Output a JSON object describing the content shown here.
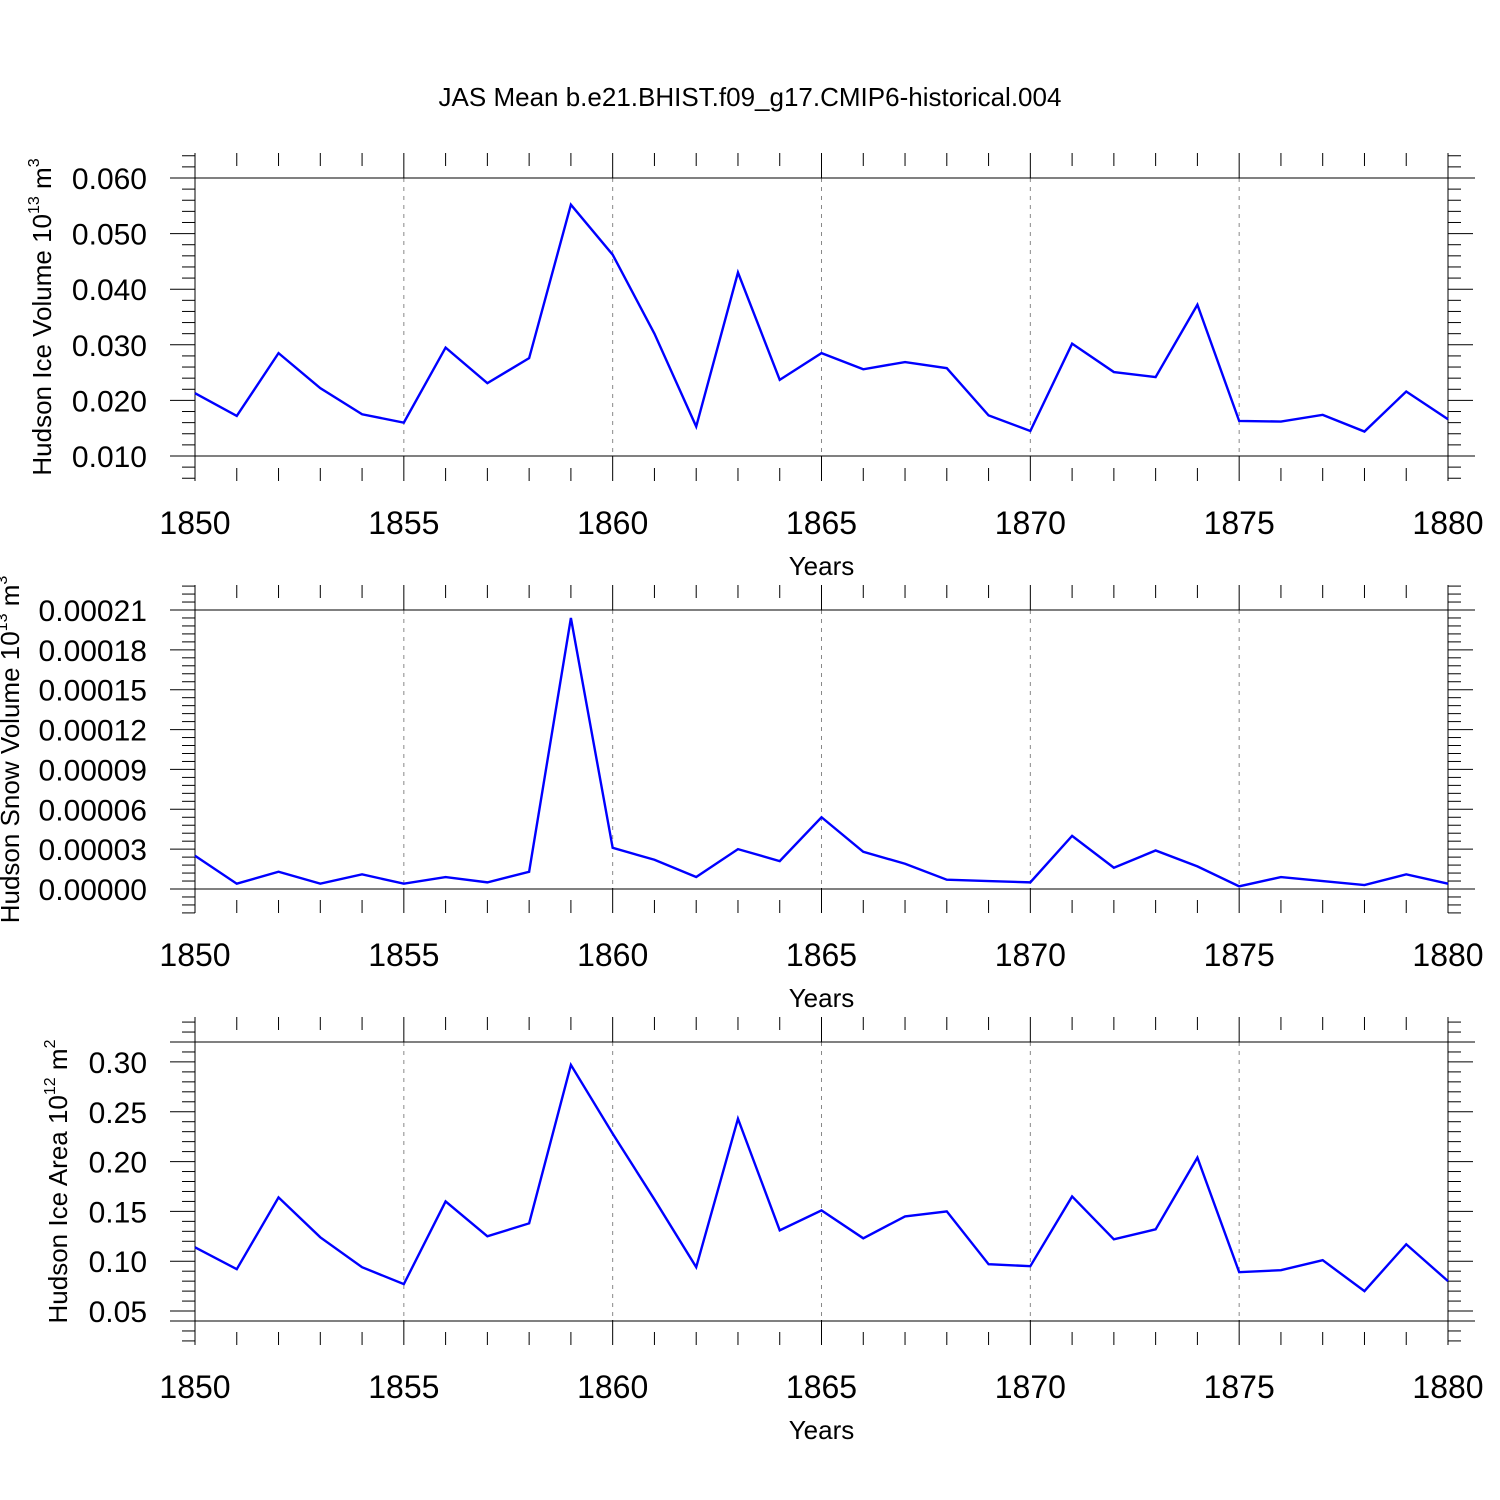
{
  "title": "JAS Mean b.e21.BHIST.f09_g17.CMIP6-historical.004",
  "colors": {
    "line": "#0000ff",
    "axis": "#000000",
    "grid": "#888888"
  },
  "chart_data": [
    {
      "type": "line",
      "ylabel": "Hudson Ice Volume 10",
      "ylabel_exp": "13",
      "ylabel_unit": " m",
      "ylabel_unit_exp": "3",
      "xlabel": "Years",
      "xlim": [
        1850,
        1880
      ],
      "ylim": [
        0.01,
        0.06
      ],
      "x_ticks": [
        "1850",
        "1855",
        "1860",
        "1865",
        "1870",
        "1875",
        "1880"
      ],
      "y_ticks": [
        "0.010",
        "0.020",
        "0.030",
        "0.040",
        "0.050",
        "0.060"
      ],
      "x": [
        1850,
        1851,
        1852,
        1853,
        1854,
        1855,
        1856,
        1857,
        1858,
        1859,
        1860,
        1861,
        1862,
        1863,
        1864,
        1865,
        1866,
        1867,
        1868,
        1869,
        1870,
        1871,
        1872,
        1873,
        1874,
        1875,
        1876,
        1877,
        1878,
        1879,
        1880
      ],
      "values": [
        0.0213,
        0.0172,
        0.0285,
        0.0222,
        0.0175,
        0.016,
        0.0295,
        0.0231,
        0.0276,
        0.0552,
        0.0462,
        0.032,
        0.0153,
        0.043,
        0.0237,
        0.0285,
        0.0256,
        0.0269,
        0.0258,
        0.0173,
        0.0145,
        0.0302,
        0.0251,
        0.0242,
        0.0372,
        0.0163,
        0.0162,
        0.0174,
        0.0144,
        0.0216,
        0.0166
      ]
    },
    {
      "type": "line",
      "ylabel": "Hudson Snow Volume 10",
      "ylabel_exp": "13",
      "ylabel_unit": " m",
      "ylabel_unit_exp": "3",
      "xlabel": "Years",
      "xlim": [
        1850,
        1880
      ],
      "ylim": [
        0.0,
        0.00021
      ],
      "x_ticks": [
        "1850",
        "1855",
        "1860",
        "1865",
        "1870",
        "1875",
        "1880"
      ],
      "y_ticks": [
        "0.00000",
        "0.00003",
        "0.00006",
        "0.00009",
        "0.00012",
        "0.00015",
        "0.00018",
        "0.00021"
      ],
      "x": [
        1850,
        1851,
        1852,
        1853,
        1854,
        1855,
        1856,
        1857,
        1858,
        1859,
        1860,
        1861,
        1862,
        1863,
        1864,
        1865,
        1866,
        1867,
        1868,
        1869,
        1870,
        1871,
        1872,
        1873,
        1874,
        1875,
        1876,
        1877,
        1878,
        1879,
        1880
      ],
      "values": [
        2.5e-05,
        4e-06,
        1.3e-05,
        4e-06,
        1.1e-05,
        4e-06,
        9e-06,
        5e-06,
        1.3e-05,
        0.000204,
        3.1e-05,
        2.2e-05,
        9e-06,
        3e-05,
        2.1e-05,
        5.4e-05,
        2.8e-05,
        1.9e-05,
        7e-06,
        6e-06,
        5e-06,
        4e-05,
        1.6e-05,
        2.9e-05,
        1.7e-05,
        2e-06,
        9e-06,
        6e-06,
        3e-06,
        1.1e-05,
        4e-06
      ]
    },
    {
      "type": "line",
      "ylabel": "Hudson Ice Area 10",
      "ylabel_exp": "12",
      "ylabel_unit": " m",
      "ylabel_unit_exp": "2",
      "xlabel": "Years",
      "xlim": [
        1850,
        1880
      ],
      "ylim": [
        0.04,
        0.32
      ],
      "x_ticks": [
        "1850",
        "1855",
        "1860",
        "1865",
        "1870",
        "1875",
        "1880"
      ],
      "y_ticks": [
        "0.05",
        "0.10",
        "0.15",
        "0.20",
        "0.25",
        "0.30"
      ],
      "x": [
        1850,
        1851,
        1852,
        1853,
        1854,
        1855,
        1856,
        1857,
        1858,
        1859,
        1860,
        1861,
        1862,
        1863,
        1864,
        1865,
        1866,
        1867,
        1868,
        1869,
        1870,
        1871,
        1872,
        1873,
        1874,
        1875,
        1876,
        1877,
        1878,
        1879,
        1880
      ],
      "values": [
        0.114,
        0.092,
        0.164,
        0.124,
        0.094,
        0.077,
        0.16,
        0.125,
        0.138,
        0.297,
        0.228,
        0.162,
        0.094,
        0.243,
        0.131,
        0.151,
        0.123,
        0.145,
        0.15,
        0.097,
        0.095,
        0.165,
        0.122,
        0.132,
        0.204,
        0.089,
        0.091,
        0.101,
        0.07,
        0.117,
        0.08
      ]
    }
  ]
}
